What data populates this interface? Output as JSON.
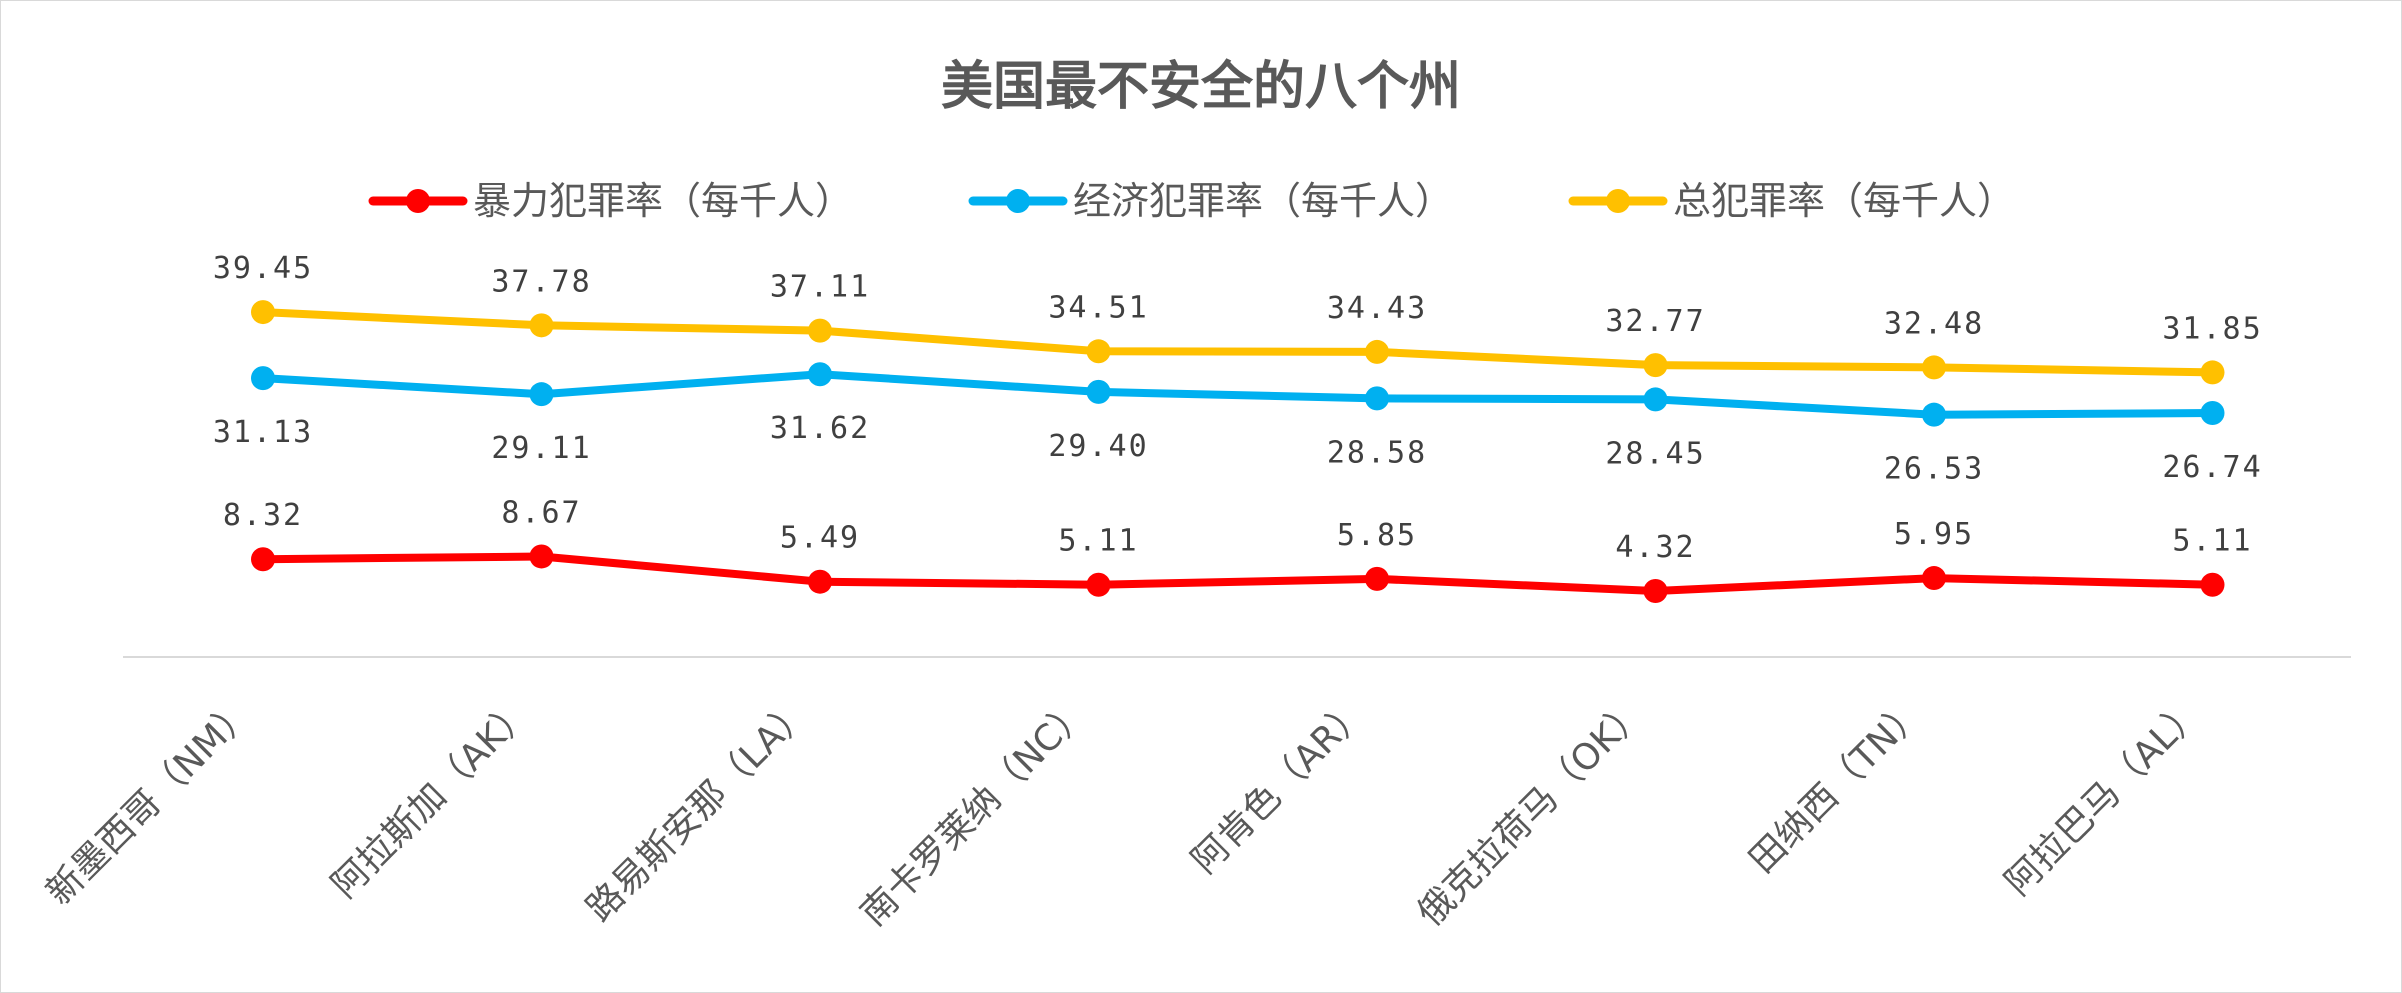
{
  "chart_data": {
    "type": "line",
    "title": "美国最不安全的八个州",
    "categories": [
      "新墨西哥（NM）",
      "阿拉斯加（AK）",
      "路易斯安那（LA）",
      "南卡罗莱纳（NC）",
      "阿肯色（AR）",
      "俄克拉荷马（OK）",
      "田纳西（TN）",
      "阿拉巴马（AL）"
    ],
    "series": [
      {
        "name": "暴力犯罪率（每千人）",
        "color": "#ff0000",
        "values": [
          8.32,
          8.67,
          5.49,
          5.11,
          5.85,
          4.32,
          5.95,
          5.11
        ],
        "labels": [
          "8.32",
          "8.67",
          "5.49",
          "5.11",
          "5.85",
          "4.32",
          "5.95",
          "5.11"
        ],
        "label_position": "above"
      },
      {
        "name": "经济犯罪率（每千人）",
        "color": "#00b0f0",
        "values": [
          31.13,
          29.11,
          31.62,
          29.4,
          28.58,
          28.45,
          26.53,
          26.74
        ],
        "labels": [
          "31.13",
          "29.11",
          "31.62",
          "29.40",
          "28.58",
          "28.45",
          "26.53",
          "26.74"
        ],
        "label_position": "below"
      },
      {
        "name": "总犯罪率（每千人）",
        "color": "#ffc000",
        "values": [
          39.45,
          37.78,
          37.11,
          34.51,
          34.43,
          32.77,
          32.48,
          31.85
        ],
        "labels": [
          "39.45",
          "37.78",
          "37.11",
          "34.51",
          "34.43",
          "32.77",
          "32.48",
          "31.85"
        ],
        "label_position": "above"
      }
    ],
    "ylim": [
      0,
      42
    ],
    "grid": false,
    "legend_position": "top",
    "xlabel": "",
    "ylabel": ""
  }
}
